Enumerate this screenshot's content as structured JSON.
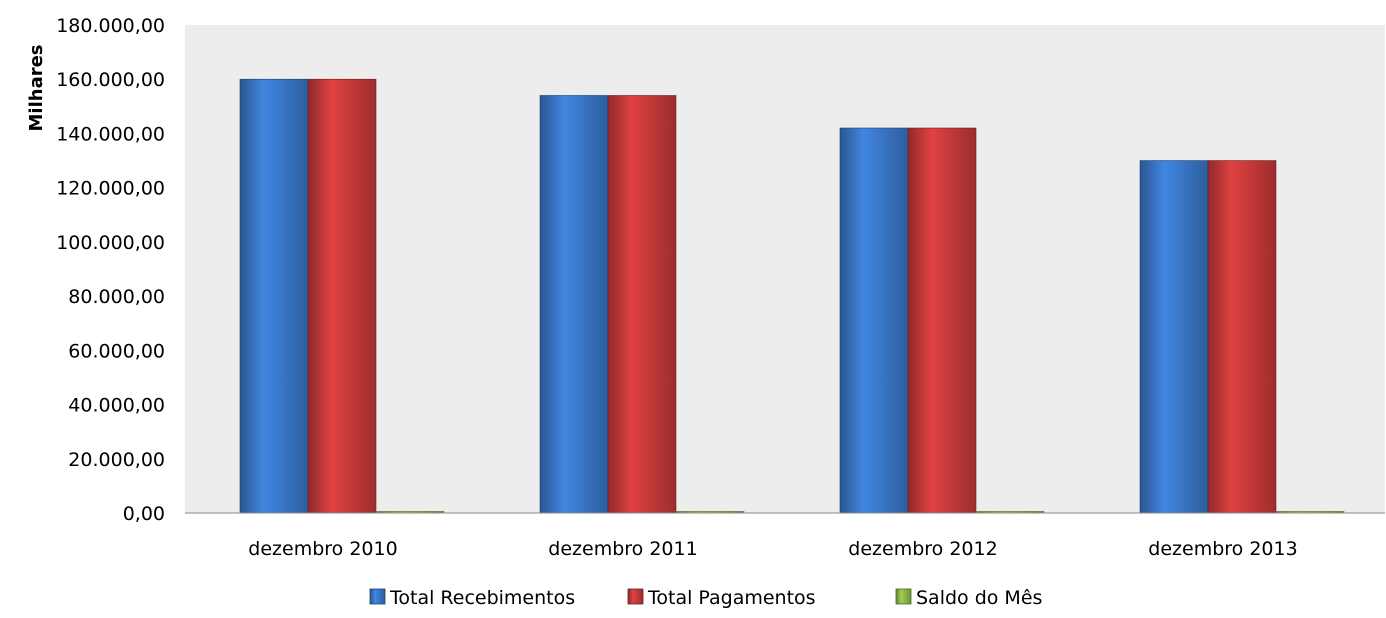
{
  "chart_data": {
    "type": "bar",
    "title": "",
    "xlabel": "",
    "ylabel": "Milhares",
    "ylim": [
      0,
      180000
    ],
    "ytick_step": 20000,
    "ytick_labels": [
      "0,00",
      "20.000,00",
      "40.000,00",
      "60.000,00",
      "80.000,00",
      "100.000,00",
      "120.000,00",
      "140.000,00",
      "160.000,00",
      "180.000,00"
    ],
    "grid": false,
    "legend_position": "bottom",
    "categories": [
      "dezembro 2010",
      "dezembro 2011",
      "dezembro 2012",
      "dezembro 2013"
    ],
    "series": [
      {
        "name": "Total Recebimentos",
        "color": "#3A78C9",
        "values": [
          160000,
          154000,
          142000,
          130000
        ]
      },
      {
        "name": "Total Pagamentos",
        "color": "#C83A3A",
        "values": [
          160000,
          154000,
          142000,
          130000
        ]
      },
      {
        "name": "Saldo do Mês",
        "color": "#8DB84A",
        "values": [
          0,
          0,
          0,
          0
        ]
      }
    ],
    "plot_background": "#EDEDED"
  }
}
